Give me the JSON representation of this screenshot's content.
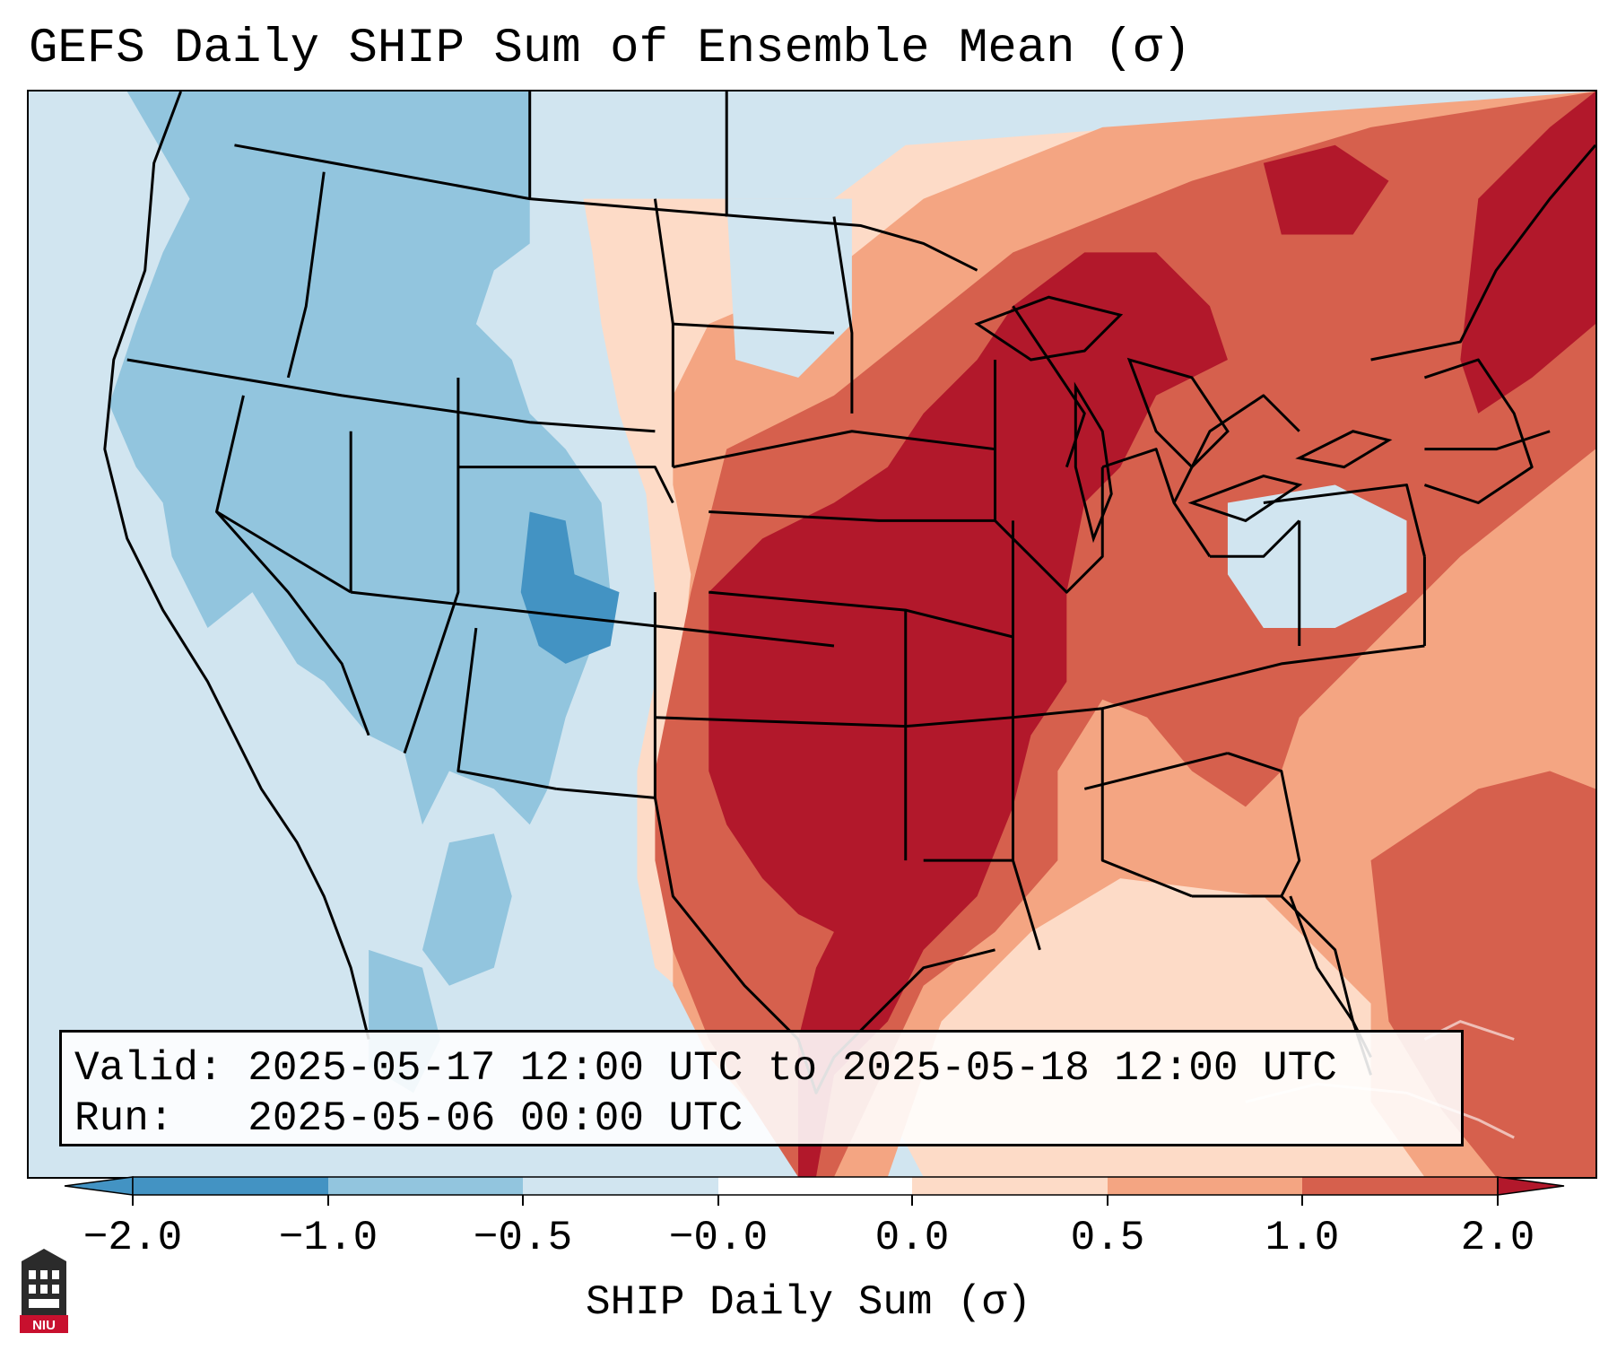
{
  "title": "GEFS Daily SHIP Sum of Ensemble Mean (σ)",
  "info": {
    "valid_label": "Valid:",
    "valid_value": "2025-05-17 12:00 UTC to 2025-05-18 12:00 UTC",
    "run_label": "Run:",
    "run_value": "2025-05-06 00:00 UTC"
  },
  "colorbar": {
    "label": "SHIP Daily Sum (σ)",
    "ticks": [
      "−2.0",
      "−1.0",
      "−0.5",
      "−0.0",
      "0.0",
      "0.5",
      "1.0",
      "2.0"
    ],
    "bins": [
      {
        "range": "< -2.0",
        "color": "#4393c3"
      },
      {
        "range": "-2.0 to -1.0",
        "color": "#4393c3"
      },
      {
        "range": "-1.0 to -0.5",
        "color": "#92c5de"
      },
      {
        "range": "-0.5 to -0.0",
        "color": "#d1e5f0"
      },
      {
        "range": "-0.0 to 0.0",
        "color": "#ffffff"
      },
      {
        "range": "0.0 to 0.5",
        "color": "#fddbc7"
      },
      {
        "range": "0.5 to 1.0",
        "color": "#f4a582"
      },
      {
        "range": "1.0 to 2.0",
        "color": "#d6604d"
      },
      {
        "range": "> 2.0",
        "color": "#b2182b"
      }
    ]
  },
  "map": {
    "region": "Contiguous United States",
    "colors": {
      "ocean": "#d1e5f0",
      "light_blue": "#92c5de",
      "mid_blue": "#4393c3",
      "light_red": "#fddbc7",
      "salmon": "#f4a582",
      "red": "#d6604d",
      "dark_red": "#b2182b"
    }
  },
  "logo": {
    "text": "NIU",
    "icon": "niu-tower-icon"
  }
}
